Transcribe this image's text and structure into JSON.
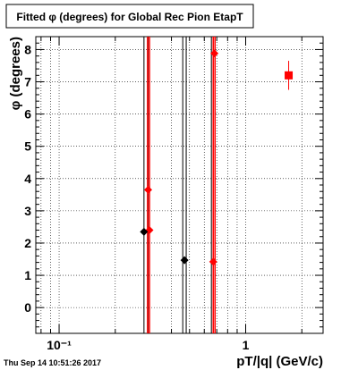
{
  "chart_data": {
    "type": "scatter",
    "title": "Fitted φ (degrees) for Global Rec Pion EtapT",
    "xlabel": "pT/|q| (GeV/c)",
    "ylabel": "φ (degrees)",
    "xscale": "log",
    "xlim": [
      0.075,
      2.6
    ],
    "ylim": [
      -0.8,
      8.4
    ],
    "x_major_ticks": [
      {
        "value": 0.1,
        "label": "10⁻¹"
      },
      {
        "value": 1,
        "label": "1"
      }
    ],
    "y_ticks": [
      0,
      1,
      2,
      3,
      4,
      5,
      6,
      7,
      8
    ],
    "grid": true,
    "series": [
      {
        "color": "#ff0000",
        "marker": "diamond",
        "points": [
          {
            "x": 0.3,
            "y": 3.65
          },
          {
            "x": 0.305,
            "y": 2.4
          },
          {
            "x": 0.67,
            "y": 1.42
          },
          {
            "x": 0.68,
            "y": 7.88
          }
        ]
      },
      {
        "color": "#000000",
        "marker": "diamond",
        "points": [
          {
            "x": 0.285,
            "y": 2.35
          },
          {
            "x": 0.47,
            "y": 1.47
          }
        ]
      },
      {
        "color": "#ff0000",
        "marker": "square",
        "points": [
          {
            "x": 1.7,
            "y": 7.2,
            "yerr": 0.45
          }
        ]
      }
    ],
    "vertical_lines": [
      {
        "x": 0.285,
        "color": "#000000"
      },
      {
        "x": 0.3,
        "color": "#000000"
      },
      {
        "x": 0.298,
        "color": "#ff0000"
      },
      {
        "x": 0.305,
        "color": "#ff0000"
      },
      {
        "x": 0.46,
        "color": "#000000"
      },
      {
        "x": 0.48,
        "color": "#000000"
      },
      {
        "x": 0.655,
        "color": "#000000"
      },
      {
        "x": 0.67,
        "color": "#ff0000"
      },
      {
        "x": 0.685,
        "color": "#ff0000"
      }
    ]
  },
  "timestamp": "Thu Sep 14 10:51:26 2017"
}
